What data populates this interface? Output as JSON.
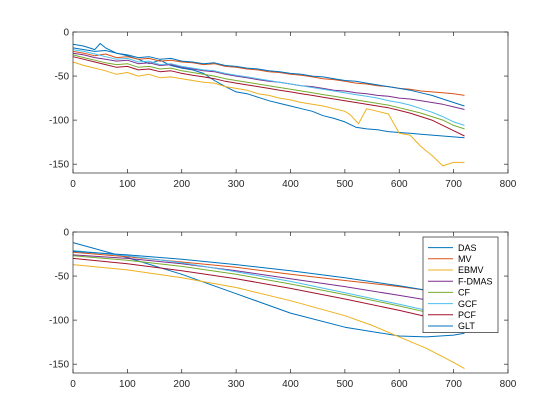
{
  "chart_data": [
    {
      "type": "line",
      "title": "",
      "xlabel": "",
      "ylabel": "",
      "xlim": [
        0,
        800
      ],
      "ylim": [
        -160,
        0
      ],
      "xticks": [
        0,
        100,
        200,
        300,
        400,
        500,
        600,
        700,
        800
      ],
      "yticks": [
        -150,
        -100,
        -50,
        0
      ],
      "grid": false,
      "legend": false,
      "series": [
        {
          "color": "#0072BD",
          "x": [
            0,
            20,
            40,
            50,
            60,
            80,
            100,
            120,
            140,
            160,
            180,
            200,
            220,
            240,
            260,
            280,
            300,
            320,
            340,
            360,
            380,
            400,
            420,
            440,
            460,
            480,
            500,
            520,
            540,
            560,
            580,
            600,
            620,
            640,
            660,
            680,
            700,
            720
          ],
          "y": [
            -14,
            -16,
            -20,
            -13,
            -18,
            -24,
            -27,
            -31,
            -36,
            -32,
            -38,
            -41,
            -43,
            -47,
            -55,
            -62,
            -68,
            -70,
            -74,
            -78,
            -81,
            -84,
            -87,
            -90,
            -95,
            -98,
            -102,
            -108,
            -110,
            -111,
            -113,
            -114,
            -115,
            -116,
            -117,
            -118,
            -119,
            -120
          ]
        },
        {
          "color": "#D95319",
          "x": [
            0,
            20,
            40,
            60,
            80,
            100,
            120,
            140,
            160,
            180,
            200,
            220,
            240,
            260,
            280,
            300,
            320,
            340,
            360,
            380,
            400,
            420,
            440,
            460,
            480,
            500,
            520,
            540,
            560,
            580,
            600,
            620,
            640,
            660,
            680,
            700,
            720
          ],
          "y": [
            -22,
            -24,
            -27,
            -25,
            -29,
            -28,
            -31,
            -30,
            -33,
            -32,
            -34,
            -35,
            -37,
            -36,
            -39,
            -40,
            -42,
            -43,
            -45,
            -46,
            -48,
            -49,
            -51,
            -53,
            -54,
            -56,
            -58,
            -59,
            -61,
            -62,
            -64,
            -65,
            -67,
            -68,
            -69,
            -70,
            -72
          ]
        },
        {
          "color": "#EDB120",
          "x": [
            0,
            20,
            40,
            60,
            80,
            100,
            120,
            140,
            160,
            180,
            200,
            220,
            240,
            260,
            280,
            300,
            320,
            340,
            360,
            380,
            400,
            420,
            440,
            460,
            480,
            500,
            510,
            525,
            540,
            560,
            580,
            600,
            620,
            640,
            660,
            680,
            700,
            720
          ],
          "y": [
            -34,
            -38,
            -41,
            -44,
            -48,
            -46,
            -50,
            -48,
            -52,
            -51,
            -53,
            -55,
            -57,
            -58,
            -62,
            -64,
            -66,
            -70,
            -72,
            -75,
            -77,
            -80,
            -82,
            -84,
            -87,
            -90,
            -94,
            -104,
            -87,
            -90,
            -93,
            -115,
            -117,
            -130,
            -140,
            -152,
            -148,
            -148
          ]
        },
        {
          "color": "#7E2F8E",
          "x": [
            0,
            20,
            40,
            60,
            80,
            100,
            120,
            140,
            160,
            180,
            200,
            220,
            240,
            260,
            280,
            300,
            320,
            340,
            360,
            380,
            400,
            420,
            440,
            460,
            480,
            500,
            520,
            540,
            560,
            580,
            600,
            620,
            640,
            660,
            680,
            700,
            720
          ],
          "y": [
            -24,
            -26,
            -29,
            -31,
            -33,
            -32,
            -36,
            -35,
            -38,
            -37,
            -40,
            -42,
            -44,
            -45,
            -48,
            -50,
            -52,
            -54,
            -56,
            -57,
            -59,
            -61,
            -62,
            -64,
            -66,
            -67,
            -69,
            -70,
            -72,
            -73,
            -75,
            -76,
            -78,
            -80,
            -82,
            -85,
            -88
          ]
        },
        {
          "color": "#77AC30",
          "x": [
            0,
            20,
            40,
            60,
            80,
            100,
            120,
            140,
            160,
            180,
            200,
            220,
            240,
            260,
            280,
            300,
            320,
            340,
            360,
            380,
            400,
            420,
            440,
            460,
            480,
            500,
            520,
            540,
            560,
            580,
            600,
            620,
            640,
            660,
            680,
            700,
            720
          ],
          "y": [
            -26,
            -29,
            -32,
            -35,
            -37,
            -36,
            -40,
            -39,
            -42,
            -41,
            -44,
            -46,
            -48,
            -50,
            -53,
            -55,
            -57,
            -59,
            -61,
            -63,
            -65,
            -67,
            -69,
            -71,
            -73,
            -75,
            -77,
            -79,
            -81,
            -83,
            -86,
            -89,
            -92,
            -96,
            -100,
            -106,
            -110
          ]
        },
        {
          "color": "#4DBEEE",
          "x": [
            0,
            20,
            40,
            60,
            80,
            100,
            120,
            140,
            160,
            180,
            200,
            220,
            240,
            260,
            280,
            300,
            320,
            340,
            360,
            380,
            400,
            420,
            440,
            460,
            480,
            500,
            520,
            540,
            560,
            580,
            600,
            620,
            640,
            660,
            680,
            700,
            720
          ],
          "y": [
            -20,
            -22,
            -25,
            -28,
            -31,
            -30,
            -34,
            -33,
            -37,
            -36,
            -39,
            -41,
            -43,
            -44,
            -47,
            -49,
            -51,
            -53,
            -55,
            -57,
            -59,
            -61,
            -63,
            -65,
            -67,
            -69,
            -71,
            -73,
            -75,
            -78,
            -80,
            -83,
            -87,
            -91,
            -96,
            -102,
            -106
          ]
        },
        {
          "color": "#A2142F",
          "x": [
            0,
            20,
            40,
            60,
            80,
            100,
            120,
            140,
            160,
            180,
            200,
            220,
            240,
            260,
            280,
            300,
            320,
            340,
            360,
            380,
            400,
            420,
            440,
            460,
            480,
            500,
            520,
            540,
            560,
            580,
            600,
            620,
            640,
            660,
            680,
            700,
            720
          ],
          "y": [
            -28,
            -31,
            -34,
            -37,
            -40,
            -39,
            -43,
            -42,
            -45,
            -44,
            -47,
            -49,
            -51,
            -53,
            -56,
            -58,
            -60,
            -62,
            -64,
            -66,
            -68,
            -70,
            -72,
            -74,
            -76,
            -78,
            -80,
            -82,
            -84,
            -86,
            -89,
            -92,
            -96,
            -100,
            -106,
            -112,
            -118
          ]
        },
        {
          "color": "#0072BD",
          "x": [
            0,
            20,
            40,
            60,
            80,
            100,
            120,
            140,
            160,
            180,
            200,
            220,
            240,
            260,
            280,
            300,
            320,
            340,
            360,
            380,
            400,
            420,
            440,
            460,
            480,
            500,
            520,
            540,
            560,
            580,
            600,
            620,
            640,
            660,
            680,
            700,
            720
          ],
          "y": [
            -18,
            -20,
            -22,
            -21,
            -24,
            -26,
            -29,
            -28,
            -31,
            -30,
            -33,
            -34,
            -36,
            -35,
            -38,
            -39,
            -41,
            -42,
            -44,
            -45,
            -47,
            -48,
            -50,
            -51,
            -53,
            -55,
            -56,
            -58,
            -60,
            -62,
            -64,
            -66,
            -69,
            -72,
            -76,
            -80,
            -84
          ]
        }
      ]
    },
    {
      "type": "line",
      "title": "",
      "xlabel": "",
      "ylabel": "",
      "xlim": [
        0,
        800
      ],
      "ylim": [
        -160,
        0
      ],
      "xticks": [
        0,
        100,
        200,
        300,
        400,
        500,
        600,
        700,
        800
      ],
      "yticks": [
        -150,
        -100,
        -50,
        0
      ],
      "grid": false,
      "legend": true,
      "legend_position": "top-right",
      "series": [
        {
          "name": "DAS",
          "color": "#0072BD",
          "x": [
            0,
            100,
            200,
            300,
            400,
            500,
            600,
            650,
            700,
            720
          ],
          "y": [
            -12,
            -29,
            -48,
            -70,
            -92,
            -108,
            -118,
            -119,
            -117,
            -115
          ]
        },
        {
          "name": "MV",
          "color": "#D95319",
          "x": [
            0,
            100,
            200,
            300,
            400,
            500,
            600,
            650,
            700,
            720
          ],
          "y": [
            -23,
            -28,
            -34,
            -40,
            -48,
            -55,
            -62,
            -66,
            -70,
            -72
          ]
        },
        {
          "name": "EBMV",
          "color": "#EDB120",
          "x": [
            0,
            100,
            200,
            300,
            400,
            500,
            550,
            600,
            650,
            700,
            720
          ],
          "y": [
            -37,
            -43,
            -52,
            -63,
            -78,
            -95,
            -106,
            -119,
            -132,
            -148,
            -155
          ]
        },
        {
          "name": "F-DMAS",
          "color": "#7E2F8E",
          "x": [
            0,
            100,
            200,
            300,
            400,
            500,
            600,
            650,
            700,
            720
          ],
          "y": [
            -26,
            -30,
            -36,
            -44,
            -53,
            -62,
            -72,
            -77,
            -82,
            -85
          ]
        },
        {
          "name": "CF",
          "color": "#77AC30",
          "x": [
            0,
            100,
            200,
            300,
            400,
            500,
            600,
            650,
            700,
            720
          ],
          "y": [
            -27,
            -32,
            -39,
            -48,
            -59,
            -71,
            -84,
            -91,
            -98,
            -101
          ]
        },
        {
          "name": "GCF",
          "color": "#4DBEEE",
          "x": [
            0,
            100,
            200,
            300,
            400,
            500,
            600,
            650,
            700,
            720
          ],
          "y": [
            -21,
            -27,
            -35,
            -45,
            -56,
            -69,
            -82,
            -89,
            -96,
            -99
          ]
        },
        {
          "name": "PCF",
          "color": "#A2142F",
          "x": [
            0,
            100,
            200,
            300,
            400,
            500,
            600,
            650,
            700,
            720
          ],
          "y": [
            -30,
            -36,
            -44,
            -53,
            -64,
            -76,
            -89,
            -96,
            -103,
            -106
          ]
        },
        {
          "name": "GLT",
          "color": "#0072BD",
          "x": [
            0,
            100,
            200,
            300,
            400,
            500,
            600,
            650,
            700,
            720
          ],
          "y": [
            -22,
            -26,
            -31,
            -37,
            -44,
            -52,
            -61,
            -66,
            -71,
            -73
          ]
        }
      ]
    }
  ]
}
